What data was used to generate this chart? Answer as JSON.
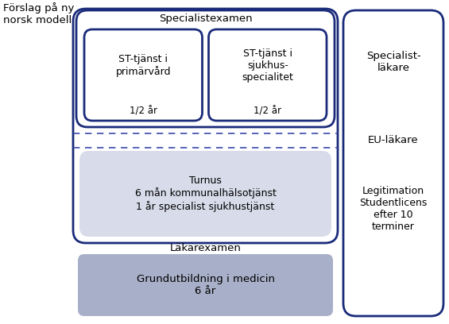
{
  "title_left": "Förslag på ny\nnorsk modell",
  "dark_blue": "#1a2b7a",
  "dashed_color": "#3949ab",
  "turnus_fill": "#d8dcea",
  "grund_fill": "#a8afc8",
  "bg_color": "#ffffff",
  "specialist_label": "Specialist-\nläkare",
  "eu_label": "EU-läkare",
  "legitimation_label": "Legitimation\nStudentlicens\nefter 10\nterminer",
  "specialist_exam_label": "Specialistexamen",
  "st_primary_label": "ST-tjänst i\nprimärvård",
  "st_hospital_label": "ST-tjänst i\nsjukhus-\nspecialitet",
  "half_year_1": "1/2 år",
  "half_year_2": "1/2 år",
  "turnus_label": "Turnus\n6 mån kommunalhälsotjänst\n1 år specialist sjukhustjänst",
  "lakarexamen_label": "Läkarexamen",
  "grundutbildning_label": "Grundutbildning i medicin\n6 år"
}
